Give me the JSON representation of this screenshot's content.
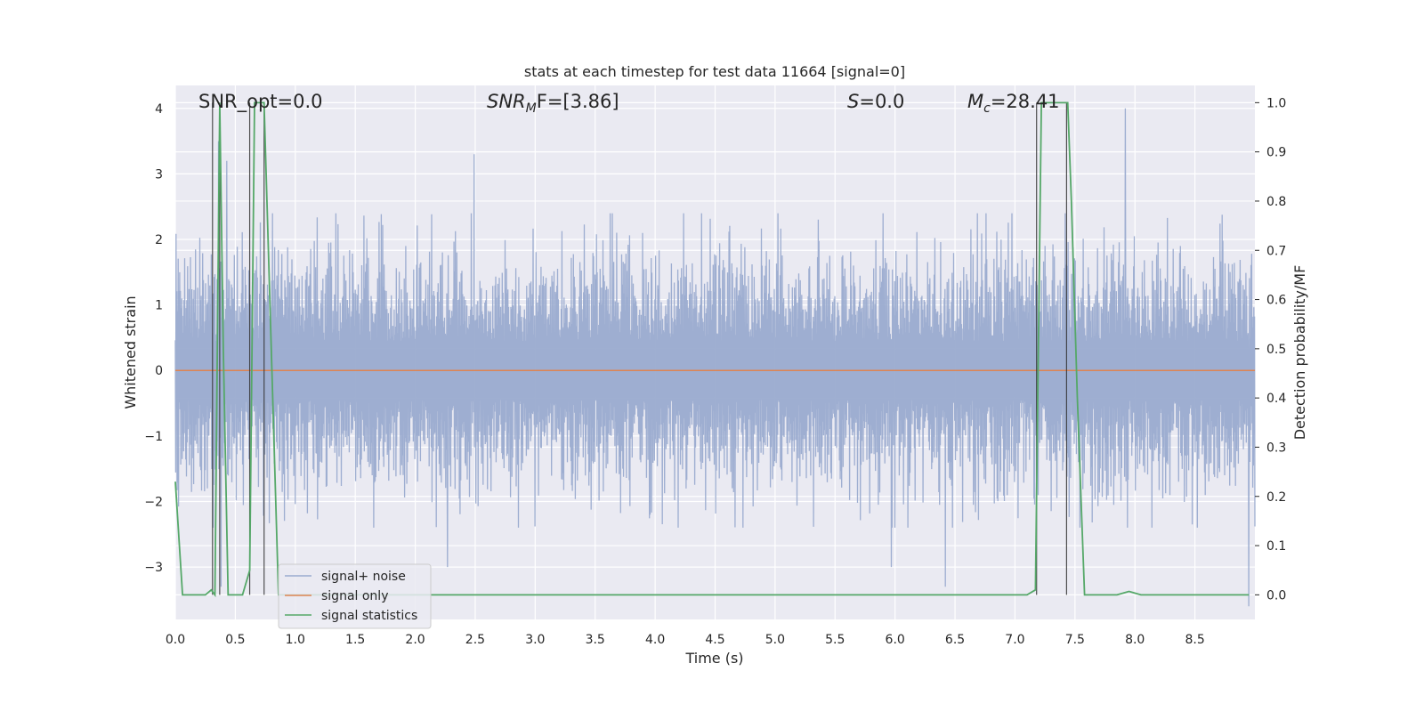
{
  "chart_data": {
    "type": "line",
    "title": "stats at each timestep for test data 11664 [signal=0]",
    "xlabel": "Time (s)",
    "ylabel": "Whitened strain",
    "ylabel_right": "Detection probability/MF",
    "xlim": [
      0.0,
      9.0
    ],
    "ylim": [
      -3.8,
      4.35
    ],
    "ylim_right": [
      -0.05,
      1.035
    ],
    "x_ticks": [
      "0.0",
      "0.5",
      "1.0",
      "1.5",
      "2.0",
      "2.5",
      "3.0",
      "3.5",
      "4.0",
      "4.5",
      "5.0",
      "5.5",
      "6.0",
      "6.5",
      "7.0",
      "7.5",
      "8.0",
      "8.5"
    ],
    "y_ticks": [
      "4",
      "3",
      "2",
      "1",
      "0",
      "−1",
      "−2",
      "−3"
    ],
    "y_right_ticks": [
      "1.0",
      "0.9",
      "0.8",
      "0.7",
      "0.6",
      "0.5",
      "0.4",
      "0.3",
      "0.2",
      "0.1",
      "0.0"
    ],
    "grid": true,
    "legend_position": "lower-left",
    "annotations": {
      "snr_opt": "SNR_opt=0.0",
      "snr_mf_base": "SNR",
      "snr_mf_sub": "M",
      "snr_mf_rest": "F=[3.86]",
      "s_italic": "S",
      "s_rest": "=0.0",
      "mc_base": "M",
      "mc_sub": "c",
      "mc_rest": "=28.41"
    },
    "series": [
      {
        "name": "signal+ noise",
        "color": "#9aabcf",
        "typical_range": [
          -1.3,
          1.3
        ],
        "peaks": [
          {
            "x": 0.36,
            "y": 3.5
          },
          {
            "x": 0.43,
            "y": 3.2
          },
          {
            "x": 2.49,
            "y": 3.3
          },
          {
            "x": 7.92,
            "y": 4.0
          },
          {
            "x": 0.38,
            "y": -3.3
          },
          {
            "x": 2.27,
            "y": -3.0
          },
          {
            "x": 8.95,
            "y": -3.6
          },
          {
            "x": 6.42,
            "y": -3.3
          },
          {
            "x": 5.97,
            "y": -3.0
          }
        ]
      },
      {
        "name": "signal only",
        "color": "#dd8452",
        "x": [
          0.0,
          9.0
        ],
        "y": [
          0.0,
          0.0
        ]
      },
      {
        "name": "signal statistics",
        "color": "#55a868",
        "axis": "right",
        "x": [
          0.0,
          0.06,
          0.1,
          0.25,
          0.3,
          0.33,
          0.37,
          0.4,
          0.44,
          0.5,
          0.56,
          0.62,
          0.66,
          0.69,
          0.74,
          0.8,
          0.86,
          1.0,
          7.1,
          7.17,
          7.22,
          7.3,
          7.44,
          7.47,
          7.52,
          7.58,
          7.7,
          7.85,
          7.95,
          8.05,
          8.15,
          8.3,
          8.95
        ],
        "y": [
          0.23,
          0.0,
          0.0,
          0.0,
          0.01,
          0.0,
          1.0,
          0.5,
          0.0,
          0.0,
          0.0,
          0.05,
          1.0,
          1.0,
          1.0,
          0.5,
          0.0,
          0.0,
          0.0,
          0.01,
          1.0,
          1.0,
          1.0,
          0.8,
          0.4,
          0.0,
          0.0,
          0.0,
          0.007,
          0.0,
          0.0,
          0.0,
          0.0
        ]
      }
    ],
    "vertical_lines_x": [
      0.31,
      0.37,
      0.62,
      0.74,
      7.18,
      7.43
    ]
  }
}
